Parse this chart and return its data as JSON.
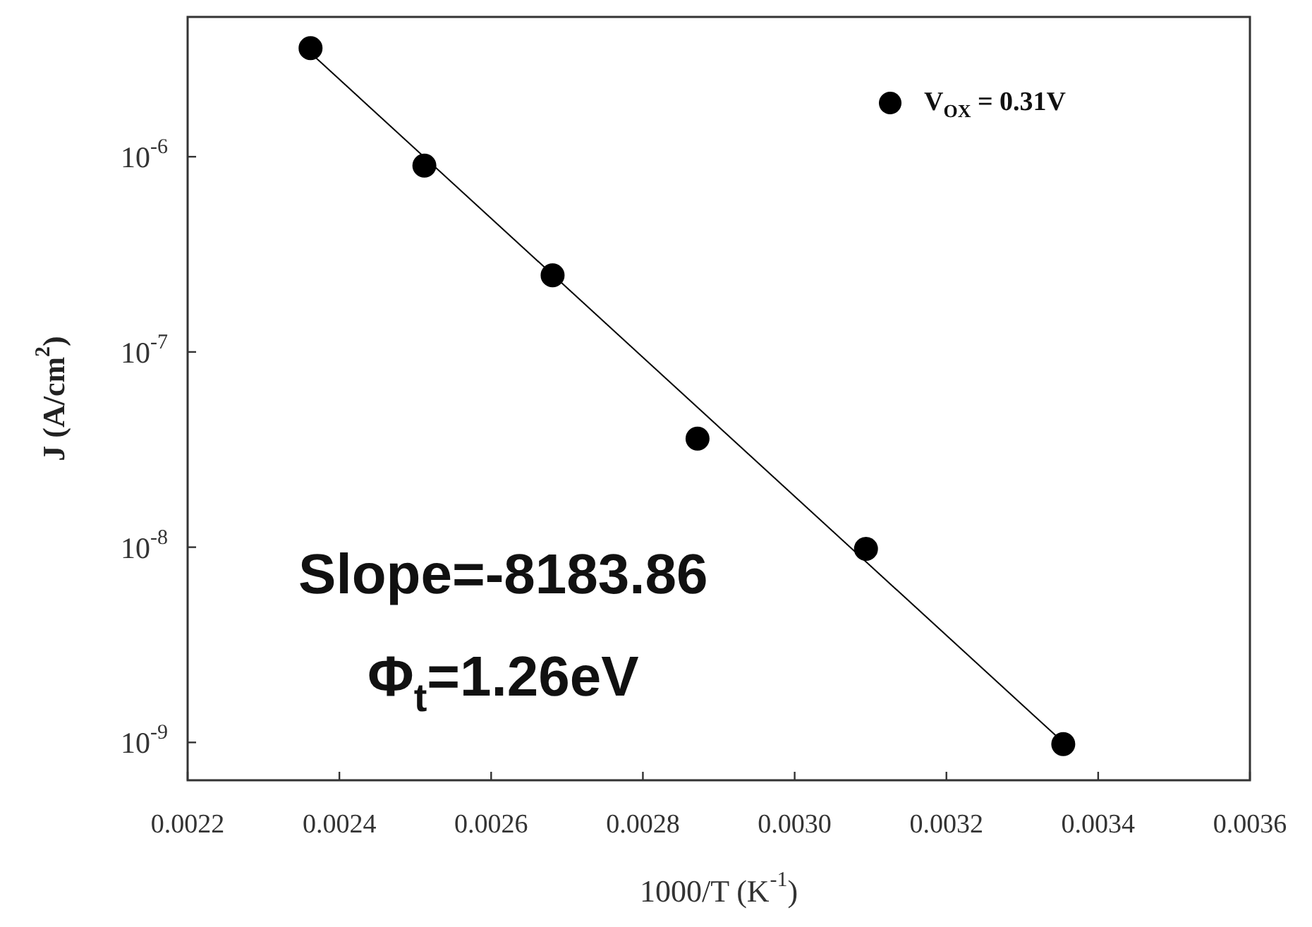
{
  "chart_data": {
    "type": "scatter",
    "xlabel": "1000/T (K$^{-1}$)",
    "ylabel": "J (A/cm$^{2}$)",
    "xlim": [
      0.0022,
      0.0036
    ],
    "xticks": [
      0.0022,
      0.0024,
      0.0026,
      0.0028,
      {
        "value": 0.003,
        "label": "0.0030"
      },
      0.0032,
      0.0034,
      0.0036
    ],
    "ylim": [
      6.4e-10,
      5.2e-06
    ],
    "yticks": [
      {
        "value": 1e-09,
        "label": "10$^{-9}$"
      },
      {
        "value": 1e-08,
        "label": "10$^{-8}$"
      },
      {
        "value": 1e-07,
        "label": "10$^{-7}$"
      },
      {
        "value": 1e-06,
        "label": "10$^{-6}$"
      }
    ],
    "log": "y",
    "grid": false,
    "legend": "top right",
    "line_style": "solid",
    "series": [
      {
        "name": "V$_{OX}$ = 0.31V",
        "type": "scatter",
        "marker": "circle",
        "color": "#000000",
        "x": [
          0.002362,
          0.002512,
          0.002681,
          0.002872,
          0.003094,
          0.003354
        ],
        "values": [
          3.6e-06,
          9e-07,
          2.47e-07,
          3.6e-08,
          9.8e-09,
          9.8e-10
        ]
      },
      {
        "type": "line",
        "marker": "none",
        "color": "#000000",
        "x": [
          0.002362,
          0.003354
        ],
        "values": [
          3.4e-06,
          1e-09
        ]
      }
    ],
    "annotations": [
      "Slope=-8183.86",
      "Φ$_{t}$=1.26eV"
    ]
  }
}
